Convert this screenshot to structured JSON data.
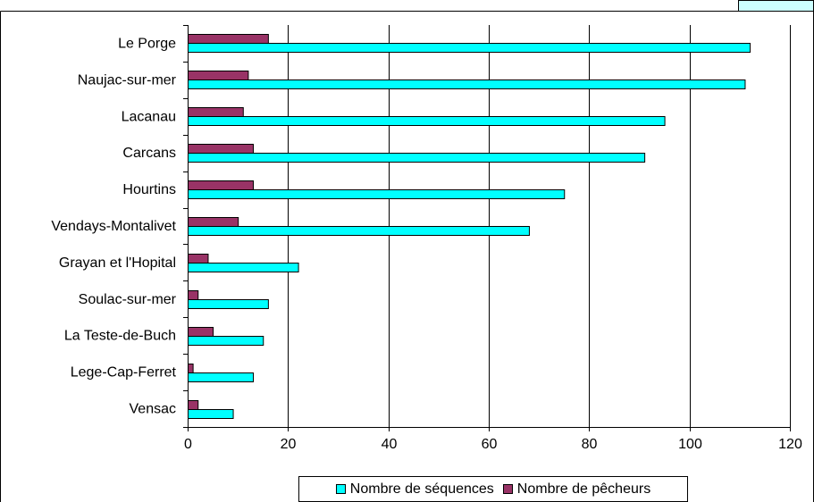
{
  "chart_data": {
    "type": "bar",
    "orientation": "horizontal",
    "categories": [
      "Le Porge",
      "Naujac-sur-mer",
      "Lacanau",
      "Carcans",
      "Hourtins",
      "Vendays-Montalivet",
      "Grayan et l'Hopital",
      "Soulac-sur-mer",
      "La Teste-de-Buch",
      "Lege-Cap-Ferret",
      "Vensac"
    ],
    "series": [
      {
        "name": "Nombre de pêcheurs",
        "color": "#993366",
        "values": [
          16,
          12,
          11,
          13,
          13,
          10,
          4,
          2,
          5,
          1,
          2
        ]
      },
      {
        "name": "Nombre de séquences",
        "color": "#00ffff",
        "values": [
          112,
          111,
          95,
          91,
          75,
          68,
          22,
          16,
          15,
          13,
          9
        ]
      }
    ],
    "x_ticks": [
      "0",
      "20",
      "40",
      "60",
      "80",
      "100",
      "120"
    ],
    "xlim": [
      0,
      120
    ],
    "grid": "vertical",
    "legend_position": "bottom",
    "legend_order": [
      "Nombre de séquences",
      "Nombre de pêcheurs"
    ],
    "title": "",
    "xlabel": "",
    "ylabel": ""
  }
}
